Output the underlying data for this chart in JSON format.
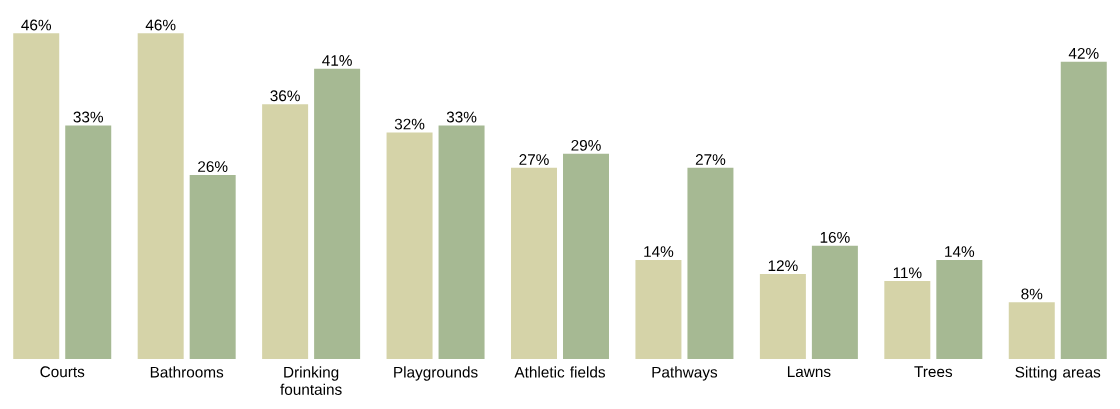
{
  "chart_data": {
    "type": "bar",
    "categories": [
      "Courts",
      "Bathrooms",
      "Drinking fountains",
      "Playgrounds",
      "Athletic fields",
      "Pathways",
      "Lawns",
      "Trees",
      "Sitting areas"
    ],
    "series": [
      {
        "color": "#d5d3a8",
        "values": [
          46,
          46,
          36,
          32,
          27,
          14,
          12,
          11,
          8
        ],
        "value_labels": [
          "46%",
          "46%",
          "36%",
          "32%",
          "27%",
          "14%",
          "12%",
          "11%",
          "8%"
        ]
      },
      {
        "color": "#a6b993",
        "values": [
          33,
          26,
          41,
          33,
          29,
          27,
          16,
          14,
          42
        ],
        "value_labels": [
          "33%",
          "26%",
          "41%",
          "33%",
          "29%",
          "27%",
          "16%",
          "14%",
          "42%"
        ]
      }
    ]
  }
}
